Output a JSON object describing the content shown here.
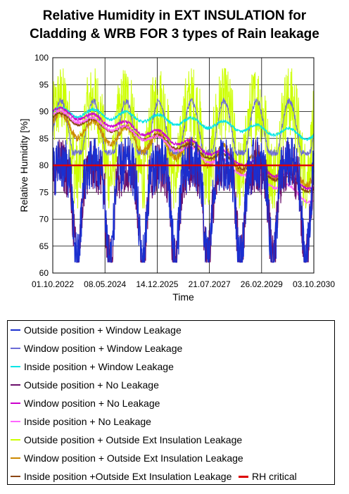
{
  "chart_data": {
    "type": "line",
    "title": "Relative Humidity in EXT INSULATION for Cladding & WRB FOR 3 types of Rain leakage",
    "title_lines": [
      "Relative Humidity in EXT INSULATION for",
      "Cladding & WRB FOR 3 types of Rain leakage"
    ],
    "xlabel": "Time",
    "ylabel": "Relative Humidity [%]",
    "x_ticks": [
      "01.10.2022",
      "08.05.2024",
      "14.12.2025",
      "21.07.2027",
      "26.02.2029",
      "03.10.2030"
    ],
    "xlim": [
      "01.10.2022",
      "03.10.2030"
    ],
    "ylim": [
      60,
      100
    ],
    "y_ticks": [
      60,
      65,
      70,
      75,
      80,
      85,
      90,
      95,
      100
    ],
    "grid": true,
    "legend_position": "bottom",
    "series": [
      {
        "name": "Outside position + Window Leakage",
        "color": "#1a2fcf",
        "pattern": "seasonal_noisy",
        "approx_range": [
          62,
          87
        ],
        "seasonal_amplitude": "high"
      },
      {
        "name": "Window position + Window Leakage",
        "color": "#6b6bd6",
        "pattern": "seasonal_smooth",
        "approx_range": [
          80,
          93
        ]
      },
      {
        "name": "Inside position + Window Leakage",
        "color": "#00e5e5",
        "pattern": "slow_decline",
        "approx_start": 90,
        "approx_end": 85.5
      },
      {
        "name": "Outside position + No Leakage",
        "color": "#6b0f6b",
        "pattern": "seasonal_noisy",
        "approx_range": [
          62,
          86
        ]
      },
      {
        "name": "Window position + No Leakage",
        "color": "#cc00cc",
        "pattern": "slow_decline",
        "approx_start": 90,
        "approx_end": 76
      },
      {
        "name": "Inside position + No Leakage",
        "color": "#ff66ff",
        "pattern": "slow_decline",
        "approx_start": 89.5,
        "approx_end": 73.5
      },
      {
        "name": "Outside position + Outside Ext Insulation Leakage",
        "color": "#ccff00",
        "pattern": "seasonal_spiky",
        "approx_range": [
          72,
          98
        ]
      },
      {
        "name": "Window position + Outside Ext Insulation Leakage",
        "color": "#cc8800",
        "pattern": "seasonal_decline",
        "approx_start": 88,
        "approx_end": 78
      },
      {
        "name": "Inside position +Outside Ext Insulation Leakage",
        "color": "#8b4513",
        "pattern": "slow_decline",
        "approx_start": 89,
        "approx_end": 75.5
      },
      {
        "name": "RH critical",
        "color": "#dd0000",
        "pattern": "constant",
        "value": 80
      }
    ]
  }
}
